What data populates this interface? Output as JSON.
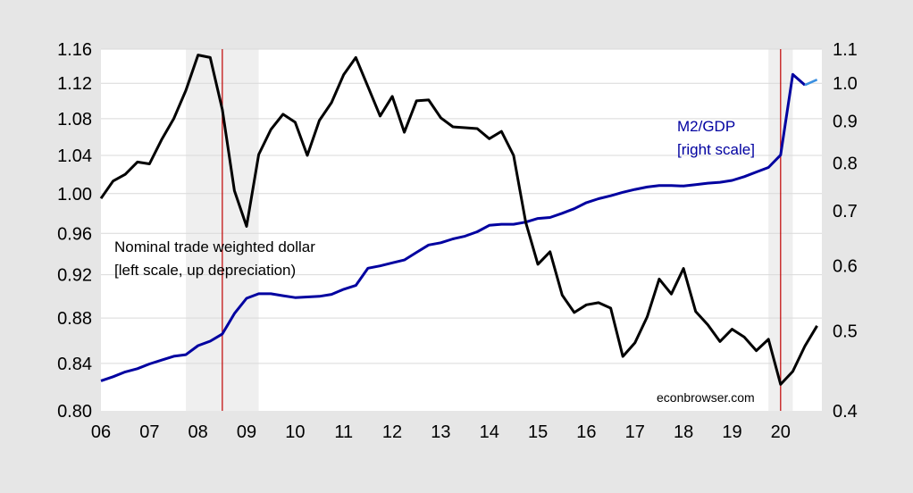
{
  "chart_data": {
    "type": "line",
    "x_tick_labels": [
      "06",
      "07",
      "08",
      "09",
      "10",
      "11",
      "12",
      "13",
      "14",
      "15",
      "16",
      "17",
      "18",
      "19",
      "20"
    ],
    "left_axis": {
      "ticks": [
        0.8,
        0.84,
        0.88,
        0.92,
        0.96,
        1.0,
        1.04,
        1.08,
        1.12,
        1.16
      ],
      "tick_labels": [
        "0.80",
        "0.84",
        "0.88",
        "0.92",
        "0.96",
        "1.00",
        "1.04",
        "1.08",
        "1.12",
        "1.16"
      ],
      "ylim": [
        0.8,
        1.16
      ],
      "scale": "log"
    },
    "right_axis": {
      "ticks": [
        0.4,
        0.5,
        0.6,
        0.7,
        0.8,
        0.9,
        1.0,
        1.1
      ],
      "tick_labels": [
        "0.4",
        "0.5",
        "0.6",
        "0.7",
        "0.8",
        "0.9",
        "1.0",
        "1.1"
      ],
      "ylim": [
        0.4,
        1.1
      ],
      "scale": "log"
    },
    "grid": "horizontal",
    "shaded_periods": [
      [
        2007.75,
        2009.25
      ],
      [
        2019.75,
        2020.25
      ]
    ],
    "vertical_lines": [
      2008.5,
      2020.0
    ],
    "colors": {
      "background": "#e6e6e6",
      "plot_bg": "#ffffff",
      "shade": "#efefef",
      "dollar": "#000000",
      "m2": "#0000a0",
      "m2_last": "#3a8fe0",
      "vline": "#c00000",
      "grid": "#d9d9d9"
    },
    "annotations": {
      "dollar_line1": "Nominal trade weighted dollar",
      "dollar_line2": "[left scale, up depreciation)",
      "m2_line1": "M2/GDP",
      "m2_line2": "[right scale]",
      "source": "econbrowser.com"
    },
    "series": [
      {
        "axis": "left",
        "x": [
          2006.0,
          2006.25,
          2006.5,
          2006.75,
          2007.0,
          2007.25,
          2007.5,
          2007.75,
          2008.0,
          2008.25,
          2008.5,
          2008.75,
          2009.0,
          2009.25,
          2009.5,
          2009.75,
          2010.0,
          2010.25,
          2010.5,
          2010.75,
          2011.0,
          2011.25,
          2011.5,
          2011.75,
          2012.0,
          2012.25,
          2012.5,
          2012.75,
          2013.0,
          2013.25,
          2013.5,
          2013.75,
          2014.0,
          2014.25,
          2014.5,
          2014.75,
          2015.0,
          2015.25,
          2015.5,
          2015.75,
          2016.0,
          2016.25,
          2016.5,
          2016.75,
          2017.0,
          2017.25,
          2017.5,
          2017.75,
          2018.0,
          2018.25,
          2018.5,
          2018.75,
          2019.0,
          2019.25,
          2019.5,
          2019.75,
          2020.0,
          2020.25,
          2020.5,
          2020.75
        ],
        "values": [
          0.995,
          1.013,
          1.02,
          1.033,
          1.031,
          1.057,
          1.08,
          1.112,
          1.153,
          1.15,
          1.09,
          1.003,
          0.967,
          1.041,
          1.068,
          1.085,
          1.076,
          1.04,
          1.078,
          1.098,
          1.13,
          1.15,
          1.116,
          1.083,
          1.105,
          1.065,
          1.1,
          1.101,
          1.081,
          1.071,
          1.07,
          1.069,
          1.058,
          1.066,
          1.04,
          0.971,
          0.93,
          0.942,
          0.901,
          0.885,
          0.892,
          0.894,
          0.889,
          0.846,
          0.858,
          0.881,
          0.916,
          0.902,
          0.926,
          0.886,
          0.874,
          0.859,
          0.87,
          0.863,
          0.851,
          0.861,
          0.822,
          0.833,
          0.855,
          0.873
        ]
      },
      {
        "axis": "right",
        "x": [
          2006.0,
          2006.25,
          2006.5,
          2006.75,
          2007.0,
          2007.25,
          2007.5,
          2007.75,
          2008.0,
          2008.25,
          2008.5,
          2008.75,
          2009.0,
          2009.25,
          2009.5,
          2009.75,
          2010.0,
          2010.25,
          2010.5,
          2010.75,
          2011.0,
          2011.25,
          2011.5,
          2011.75,
          2012.0,
          2012.25,
          2012.5,
          2012.75,
          2013.0,
          2013.25,
          2013.5,
          2013.75,
          2014.0,
          2014.25,
          2014.5,
          2014.75,
          2015.0,
          2015.25,
          2015.5,
          2015.75,
          2016.0,
          2016.25,
          2016.5,
          2016.75,
          2017.0,
          2017.25,
          2017.5,
          2017.75,
          2018.0,
          2018.25,
          2018.5,
          2018.75,
          2019.0,
          2019.25,
          2019.5,
          2019.75,
          2020.0,
          2020.25,
          2020.5,
          2020.75
        ],
        "values": [
          0.435,
          0.44,
          0.446,
          0.45,
          0.456,
          0.461,
          0.466,
          0.468,
          0.48,
          0.486,
          0.496,
          0.525,
          0.548,
          0.555,
          0.555,
          0.552,
          0.549,
          0.55,
          0.551,
          0.554,
          0.562,
          0.568,
          0.596,
          0.6,
          0.605,
          0.61,
          0.623,
          0.636,
          0.64,
          0.647,
          0.652,
          0.66,
          0.672,
          0.674,
          0.674,
          0.678,
          0.685,
          0.687,
          0.695,
          0.704,
          0.716,
          0.724,
          0.73,
          0.737,
          0.743,
          0.748,
          0.751,
          0.751,
          0.75,
          0.753,
          0.756,
          0.758,
          0.762,
          0.77,
          0.78,
          0.79,
          0.818,
          1.025,
          0.995,
          1.01
        ]
      }
    ]
  }
}
